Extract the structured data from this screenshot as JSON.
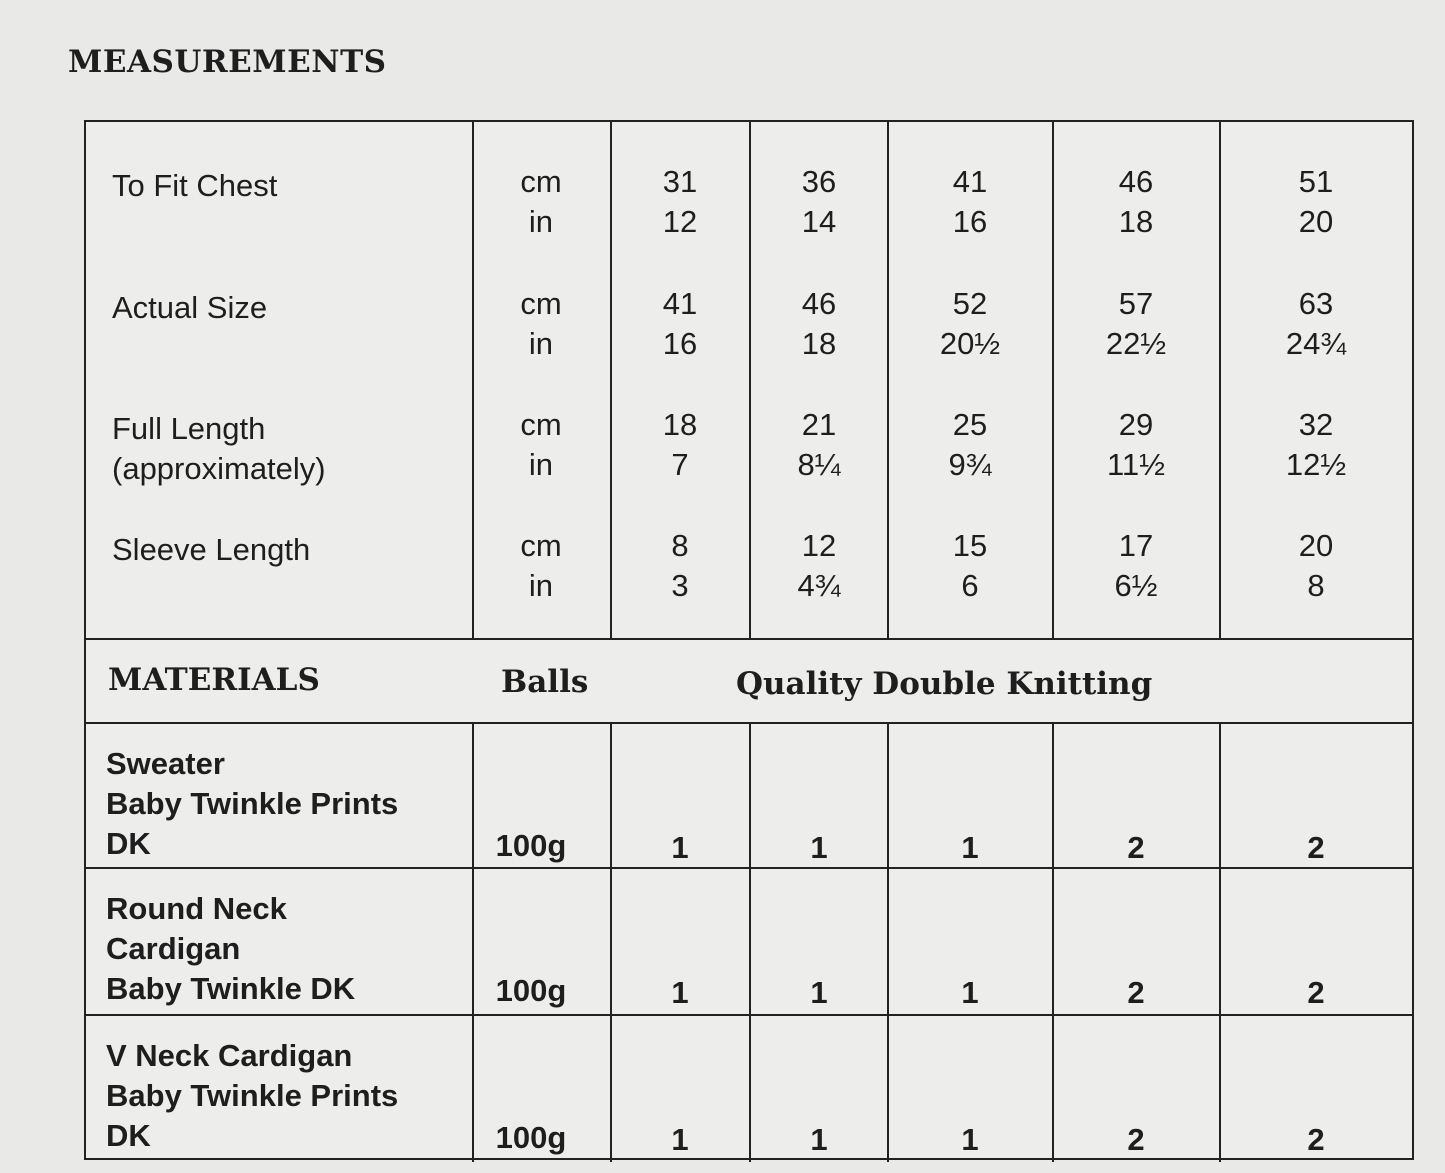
{
  "title": "MEASUREMENTS",
  "measurements": [
    {
      "label": "To Fit Chest",
      "units": [
        "cm",
        "in"
      ],
      "values": [
        [
          "31",
          "12"
        ],
        [
          "36",
          "14"
        ],
        [
          "41",
          "16"
        ],
        [
          "46",
          "18"
        ],
        [
          "51",
          "20"
        ]
      ]
    },
    {
      "label": "Actual Size",
      "units": [
        "cm",
        "in"
      ],
      "values": [
        [
          "41",
          "16"
        ],
        [
          "46",
          "18"
        ],
        [
          "52",
          "20½"
        ],
        [
          "57",
          "22½"
        ],
        [
          "63",
          "24¾"
        ]
      ]
    },
    {
      "label": "Full Length (approximately)",
      "units": [
        "cm",
        "in"
      ],
      "values": [
        [
          "18",
          "7"
        ],
        [
          "21",
          "8¼"
        ],
        [
          "25",
          "9¾"
        ],
        [
          "29",
          "11½"
        ],
        [
          "32",
          "12½"
        ]
      ]
    },
    {
      "label": "Sleeve Length",
      "units": [
        "cm",
        "in"
      ],
      "values": [
        [
          "8",
          "3"
        ],
        [
          "12",
          "4¾"
        ],
        [
          "15",
          "6"
        ],
        [
          "17",
          "6½"
        ],
        [
          "20",
          "8"
        ]
      ]
    }
  ],
  "materials_header": {
    "label": "MATERIALS",
    "balls": "Balls",
    "quality": "Quality  Double Knitting"
  },
  "materials": [
    {
      "label": "Sweater\nBaby Twinkle Prints\nDK",
      "weight": "100g",
      "values": [
        "1",
        "1",
        "1",
        "2",
        "2"
      ]
    },
    {
      "label": "Round Neck\nCardigan\nBaby Twinkle DK",
      "weight": "100g",
      "values": [
        "1",
        "1",
        "1",
        "2",
        "2"
      ]
    },
    {
      "label": "V Neck Cardigan\nBaby Twinkle Prints\nDK",
      "weight": "100g",
      "values": [
        "1",
        "1",
        "1",
        "2",
        "2"
      ]
    }
  ]
}
